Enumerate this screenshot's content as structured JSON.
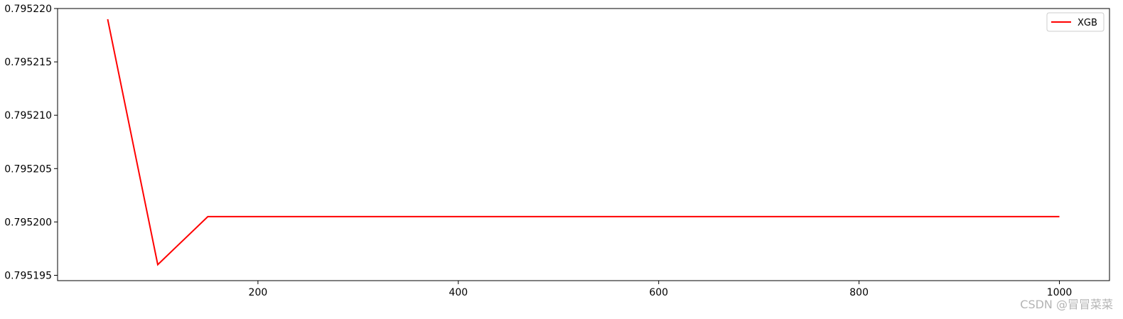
{
  "chart_data": {
    "type": "line",
    "title": "",
    "xlabel": "",
    "ylabel": "",
    "xlim": [
      0,
      1050
    ],
    "ylim": [
      0.7951945,
      0.79522
    ],
    "x_ticks": [
      200,
      400,
      600,
      800,
      1000
    ],
    "x_tick_labels": [
      "200",
      "400",
      "600",
      "800",
      "1000"
    ],
    "y_ticks": [
      0.795195,
      0.7952,
      0.795205,
      0.79521,
      0.795215,
      0.79522
    ],
    "y_tick_labels": [
      "0.795195",
      "0.795200",
      "0.795205",
      "0.795210",
      "0.795215",
      "0.795220"
    ],
    "grid": false,
    "legend_position": "top-right",
    "series": [
      {
        "name": "XGB",
        "color": "#ff0000",
        "x": [
          50,
          100,
          150,
          200,
          250,
          300,
          350,
          400,
          450,
          500,
          550,
          600,
          650,
          700,
          750,
          800,
          850,
          900,
          950,
          1000
        ],
        "y": [
          0.795219,
          0.795196,
          0.7952005,
          0.7952005,
          0.7952005,
          0.7952005,
          0.7952005,
          0.7952005,
          0.7952005,
          0.7952005,
          0.7952005,
          0.7952005,
          0.7952005,
          0.7952005,
          0.7952005,
          0.7952005,
          0.7952005,
          0.7952005,
          0.7952005,
          0.7952005
        ]
      }
    ]
  },
  "watermark": "CSDN @冒冒菜菜"
}
